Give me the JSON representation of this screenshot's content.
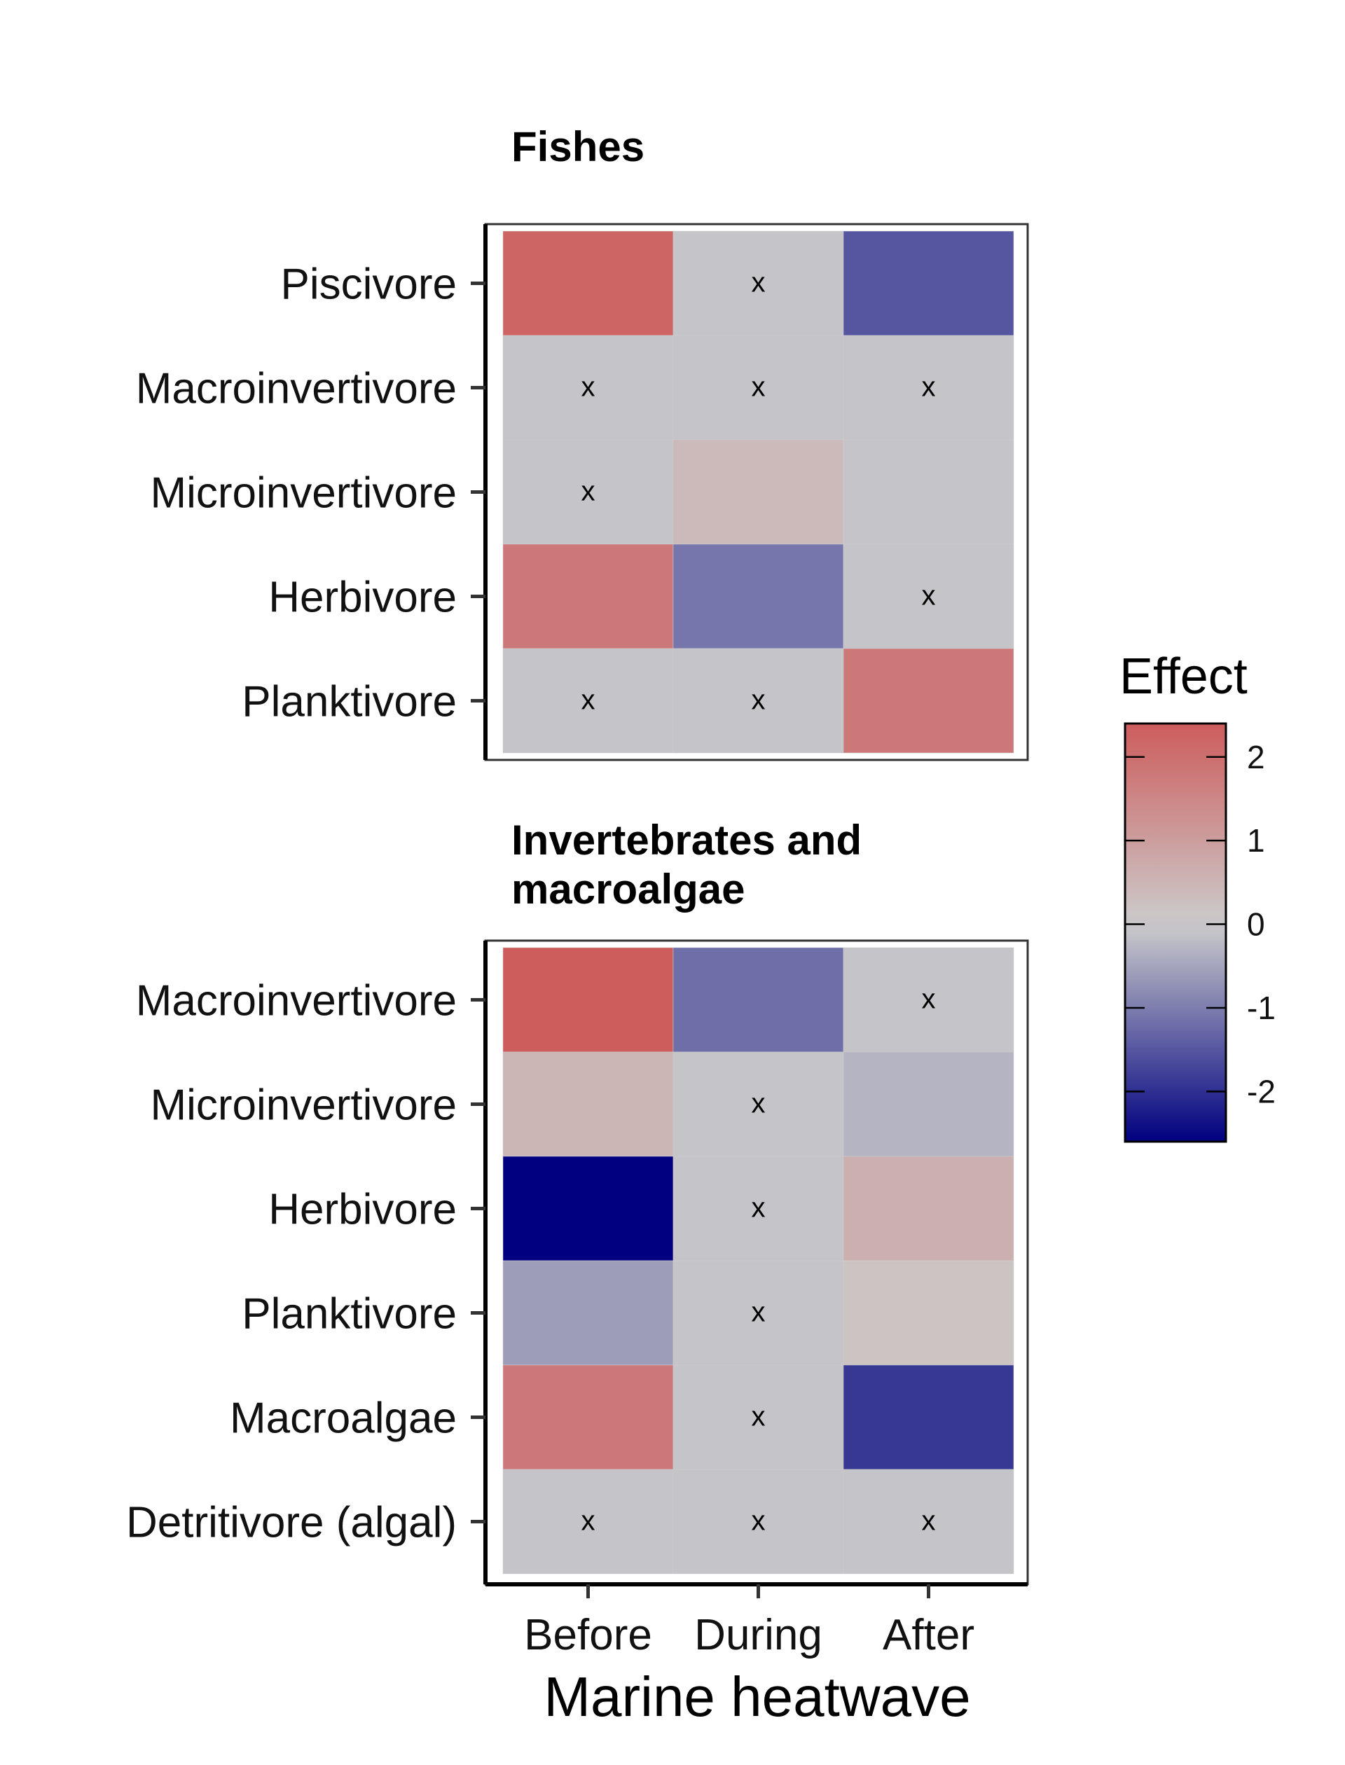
{
  "chart_data": {
    "type": "heatmap",
    "xlabel": "Marine heatwave",
    "columns": [
      "Before",
      "During",
      "After"
    ],
    "legend": {
      "title": "Effect",
      "ticks": [
        2,
        1,
        0,
        -1,
        -2
      ],
      "range": [
        -2.6,
        2.4
      ],
      "colors": {
        "low": "#000080",
        "mid": "#cccccc",
        "high": "#cd5c5c"
      },
      "placement": "right"
    },
    "nonsignificant_marker": "x",
    "panels": [
      {
        "title": "Fishes",
        "rows": [
          "Piscivore",
          "Macroinvertivore",
          "Microinvertivore",
          "Herbivore",
          "Planktivore"
        ],
        "values": [
          [
            2.2,
            -0.1,
            -1.5
          ],
          [
            -0.1,
            -0.1,
            -0.1
          ],
          [
            -0.1,
            0.4,
            -0.1
          ],
          [
            1.8,
            -1.1,
            -0.1
          ],
          [
            -0.1,
            -0.1,
            1.8
          ]
        ],
        "marks": [
          [
            "",
            "x",
            ""
          ],
          [
            "x",
            "x",
            "x"
          ],
          [
            "x",
            "",
            ""
          ],
          [
            "",
            "",
            "x"
          ],
          [
            "x",
            "x",
            ""
          ]
        ]
      },
      {
        "title": "Invertebrates and macroalgae",
        "rows": [
          "Macroinvertivore",
          "Microinvertivore",
          "Herbivore",
          "Planktivore",
          "Macroalgae",
          "Detritivore (algal)"
        ],
        "values": [
          [
            2.4,
            -1.2,
            -0.1
          ],
          [
            0.5,
            -0.1,
            -0.3
          ],
          [
            -2.6,
            -0.1,
            0.6
          ],
          [
            -0.6,
            -0.1,
            0.2
          ],
          [
            1.8,
            -0.1,
            -1.9
          ],
          [
            -0.1,
            -0.1,
            -0.1
          ]
        ],
        "marks": [
          [
            "",
            "",
            "x"
          ],
          [
            "",
            "x",
            ""
          ],
          [
            "",
            "x",
            ""
          ],
          [
            "",
            "x",
            ""
          ],
          [
            "",
            "x",
            ""
          ],
          [
            "x",
            "x",
            "x"
          ]
        ]
      }
    ]
  }
}
